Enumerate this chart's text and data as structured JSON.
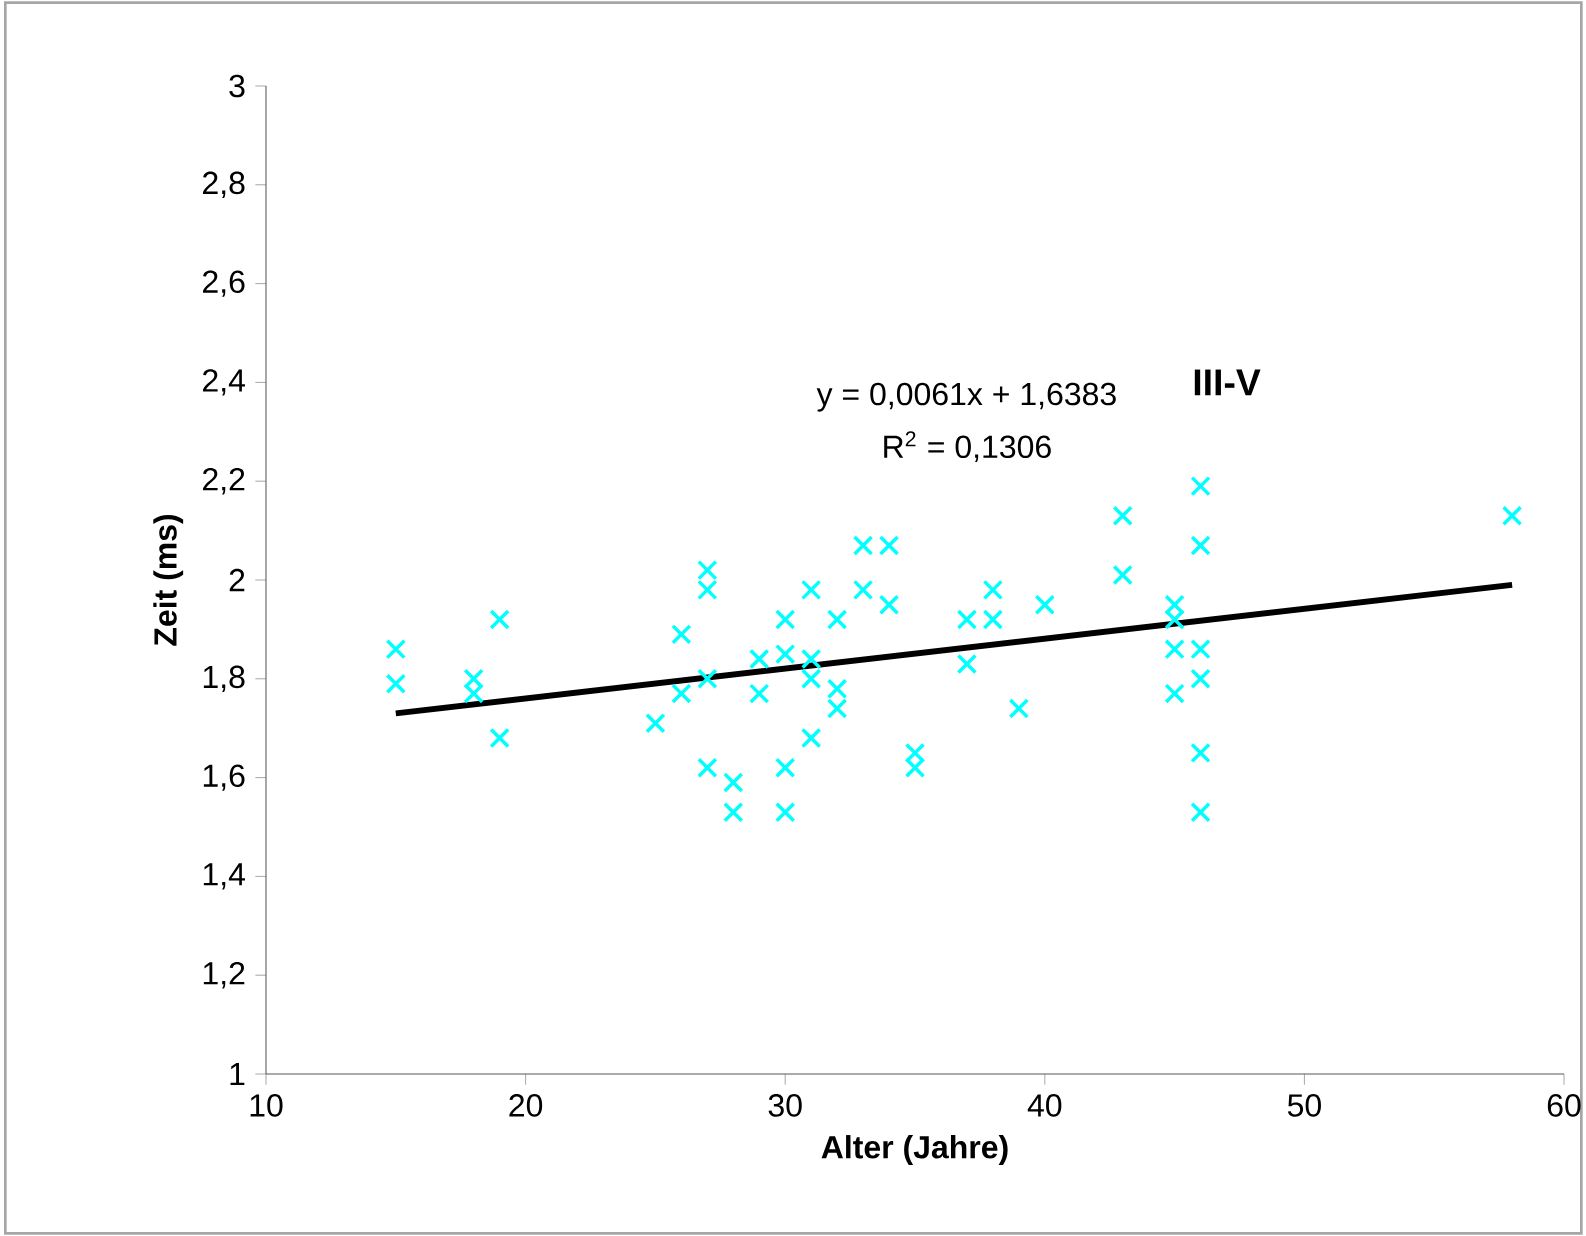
{
  "chart_data": {
    "type": "scatter",
    "xlabel": "Alter (Jahre)",
    "ylabel": "Zeit (ms)",
    "xlim": [
      10,
      60
    ],
    "xticks": [
      10,
      20,
      30,
      40,
      50,
      60
    ],
    "ylim": [
      1,
      3
    ],
    "yticks": [
      1,
      {
        "value": 1.2,
        "label": "1,2"
      },
      {
        "value": 1.4,
        "label": "1,4"
      },
      {
        "value": 1.6,
        "label": "1,6"
      },
      {
        "value": 1.8,
        "label": "1,8"
      },
      2,
      {
        "value": 2.2,
        "label": "2,2"
      },
      {
        "value": 2.4,
        "label": "2,4"
      },
      {
        "value": 2.6,
        "label": "2,6"
      },
      {
        "value": 2.8,
        "label": "2,8"
      },
      3
    ],
    "grid": false,
    "annotations": [
      "y = 0,0061x + 1,6383",
      "R$^{2}$ = 0,1306",
      "III-V"
    ],
    "series": [
      {
        "marker": "cross",
        "color": "#00ffff",
        "x": [
          15,
          15,
          18,
          18,
          19,
          19,
          25,
          26,
          26,
          27,
          27,
          27,
          27,
          28,
          28,
          29,
          29,
          30,
          30,
          30,
          30,
          31,
          31,
          31,
          31,
          32,
          32,
          32,
          33,
          33,
          34,
          34,
          35,
          35,
          37,
          37,
          38,
          38,
          39,
          40,
          43,
          43,
          45,
          45,
          45,
          45,
          46,
          46,
          46,
          46,
          46,
          46,
          58
        ],
        "values": [
          1.86,
          1.79,
          1.8,
          1.77,
          1.92,
          1.68,
          1.71,
          1.89,
          1.77,
          2.02,
          1.98,
          1.8,
          1.62,
          1.59,
          1.53,
          1.84,
          1.77,
          1.92,
          1.85,
          1.62,
          1.53,
          1.98,
          1.84,
          1.8,
          1.68,
          1.92,
          1.78,
          1.74,
          2.07,
          1.98,
          2.07,
          1.95,
          1.65,
          1.62,
          1.92,
          1.83,
          1.98,
          1.92,
          1.74,
          1.95,
          2.13,
          2.01,
          1.95,
          1.92,
          1.86,
          1.77,
          2.19,
          2.07,
          1.86,
          1.8,
          1.65,
          1.53,
          2.13
        ]
      },
      {
        "type": "line",
        "marker": "none",
        "color": "#000000",
        "x": [
          15,
          58
        ],
        "values": [
          1.73,
          1.99
        ]
      }
    ]
  }
}
